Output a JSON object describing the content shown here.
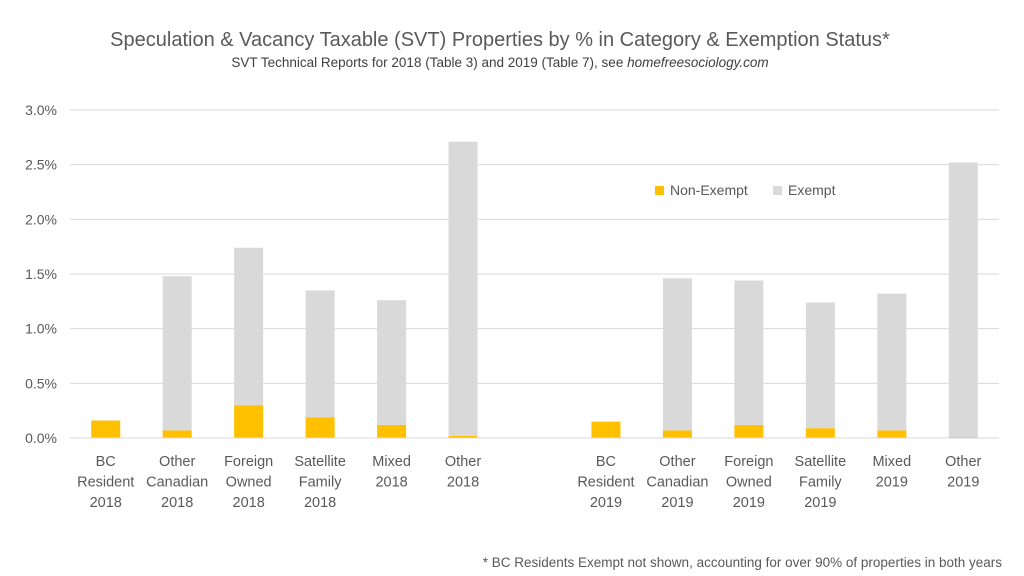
{
  "chart_data": {
    "type": "bar",
    "stacked": true,
    "title": "Speculation & Vacancy Taxable (SVT) Properties by % in Category & Exemption Status*",
    "subtitle_parts": [
      "SVT Technical Reports for 2018 (Table 3) and 2019 (Table 7), see ",
      "homefreesociology.com"
    ],
    "categories": [
      [
        "BC",
        "Resident",
        "2018"
      ],
      [
        "Other",
        "Canadian",
        "2018"
      ],
      [
        "Foreign",
        "Owned",
        "2018"
      ],
      [
        "Satellite",
        "Family",
        "2018"
      ],
      [
        "Mixed",
        "2018"
      ],
      [
        "Other",
        "2018"
      ],
      [
        "",
        "",
        ""
      ],
      [
        "BC",
        "Resident",
        "2019"
      ],
      [
        "Other",
        "Canadian",
        "2019"
      ],
      [
        "Foreign",
        "Owned",
        "2019"
      ],
      [
        "Satellite",
        "Family",
        "2019"
      ],
      [
        "Mixed",
        "2019"
      ],
      [
        "Other",
        "2019"
      ]
    ],
    "series": [
      {
        "name": "Non-Exempt",
        "color": "#FFC000",
        "values": [
          0.16,
          0.07,
          0.3,
          0.19,
          0.12,
          0.02,
          null,
          0.15,
          0.07,
          0.12,
          0.09,
          0.07,
          0.01
        ]
      },
      {
        "name": "Exempt",
        "color": "#D9D9D9",
        "values": [
          null,
          1.41,
          1.44,
          1.16,
          1.14,
          2.69,
          null,
          null,
          1.39,
          1.32,
          1.15,
          1.25,
          2.51
        ]
      }
    ],
    "y_ticks": [
      "0.0%",
      "0.5%",
      "1.0%",
      "1.5%",
      "2.0%",
      "2.5%",
      "3.0%"
    ],
    "ylim": [
      0,
      3.0
    ],
    "grid": true,
    "legend_position": "upper-right-inside",
    "footnote": "* BC Residents Exempt not shown, accounting for over 90% of properties in both years"
  }
}
